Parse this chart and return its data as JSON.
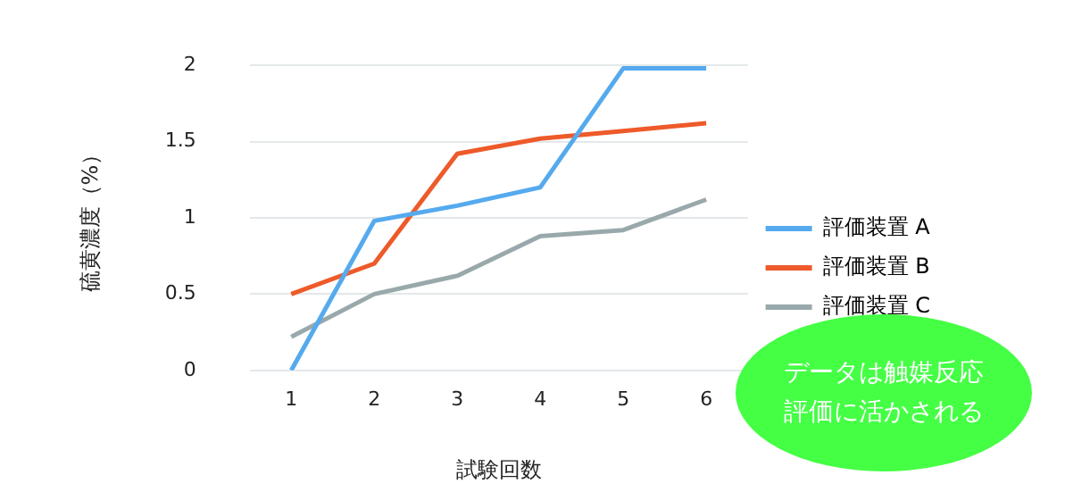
{
  "chart_data": {
    "type": "line",
    "xlabel": "試験回数",
    "ylabel": "硫黄濃度（%）",
    "categories": [
      "1",
      "2",
      "3",
      "4",
      "5",
      "6"
    ],
    "series": [
      {
        "name": "評価装置 A",
        "color": "#55aaee",
        "values": [
          0,
          0.98,
          1.08,
          1.2,
          1.98,
          1.98
        ]
      },
      {
        "name": "評価装置 B",
        "color": "#ee5a2a",
        "values": [
          0.5,
          0.7,
          1.42,
          1.52,
          1.57,
          1.62
        ]
      },
      {
        "name": "評価装置 C",
        "color": "#99a9ab",
        "values": [
          0.22,
          0.5,
          0.62,
          0.88,
          0.92,
          1.12
        ]
      }
    ],
    "ylim": [
      0,
      2
    ],
    "yticks": [
      0,
      0.5,
      1,
      1.5,
      2
    ],
    "grid": "y",
    "legend": "right",
    "marker": "none",
    "line_style": "solid",
    "annotations": [
      "データは触媒反応評価に活かされる"
    ]
  }
}
